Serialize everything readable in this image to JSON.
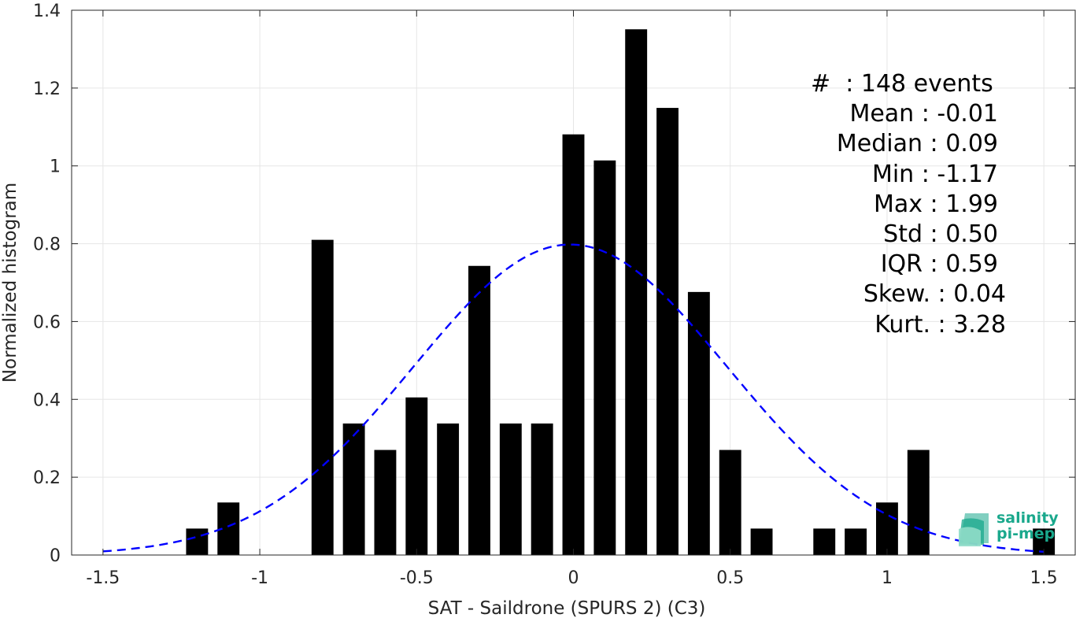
{
  "chart_data": {
    "type": "bar",
    "xlabel": "SAT - Saildrone (SPURS 2) (C3)",
    "ylabel": "Normalized histogram",
    "xlim": [
      -1.6,
      1.6
    ],
    "ylim": [
      0,
      1.4
    ],
    "xticks": [
      "-1.5",
      "-1",
      "-0.5",
      "0",
      "0.5",
      "1",
      "1.5"
    ],
    "yticks": [
      "0",
      "0.2",
      "0.4",
      "0.6",
      "0.8",
      "1",
      "1.2",
      "1.4"
    ],
    "grid": true,
    "bin_width": 0.1,
    "bars": [
      {
        "x": -1.2,
        "y": 0.068
      },
      {
        "x": -1.1,
        "y": 0.135
      },
      {
        "x": -0.8,
        "y": 0.81
      },
      {
        "x": -0.7,
        "y": 0.338
      },
      {
        "x": -0.6,
        "y": 0.27
      },
      {
        "x": -0.5,
        "y": 0.405
      },
      {
        "x": -0.4,
        "y": 0.338
      },
      {
        "x": -0.3,
        "y": 0.743
      },
      {
        "x": -0.2,
        "y": 0.338
      },
      {
        "x": -0.1,
        "y": 0.338
      },
      {
        "x": 0.0,
        "y": 1.081
      },
      {
        "x": 0.1,
        "y": 1.014
      },
      {
        "x": 0.2,
        "y": 1.351
      },
      {
        "x": 0.3,
        "y": 1.149
      },
      {
        "x": 0.4,
        "y": 0.676
      },
      {
        "x": 0.5,
        "y": 0.27
      },
      {
        "x": 0.6,
        "y": 0.068
      },
      {
        "x": 0.8,
        "y": 0.068
      },
      {
        "x": 0.9,
        "y": 0.068
      },
      {
        "x": 1.0,
        "y": 0.135
      },
      {
        "x": 1.1,
        "y": 0.27
      },
      {
        "x": 1.5,
        "y": 0.068
      }
    ],
    "fit_curve": {
      "type": "gaussian",
      "mean": -0.01,
      "std": 0.5,
      "x_range": [
        -1.5,
        1.5
      ],
      "color": "#0000ff",
      "style": "dashed"
    },
    "bar_color": "#000000"
  },
  "stats": [
    "#  : 148 events",
    "Mean : -0.01",
    "Median : 0.09",
    "Min : -1.17",
    "Max : 1.99",
    "Std : 0.50",
    "IQR : 0.59",
    "Skew. : 0.04",
    "Kurt. : 3.28"
  ],
  "logo": {
    "line1": "salinity",
    "line2": "pi-mep"
  }
}
